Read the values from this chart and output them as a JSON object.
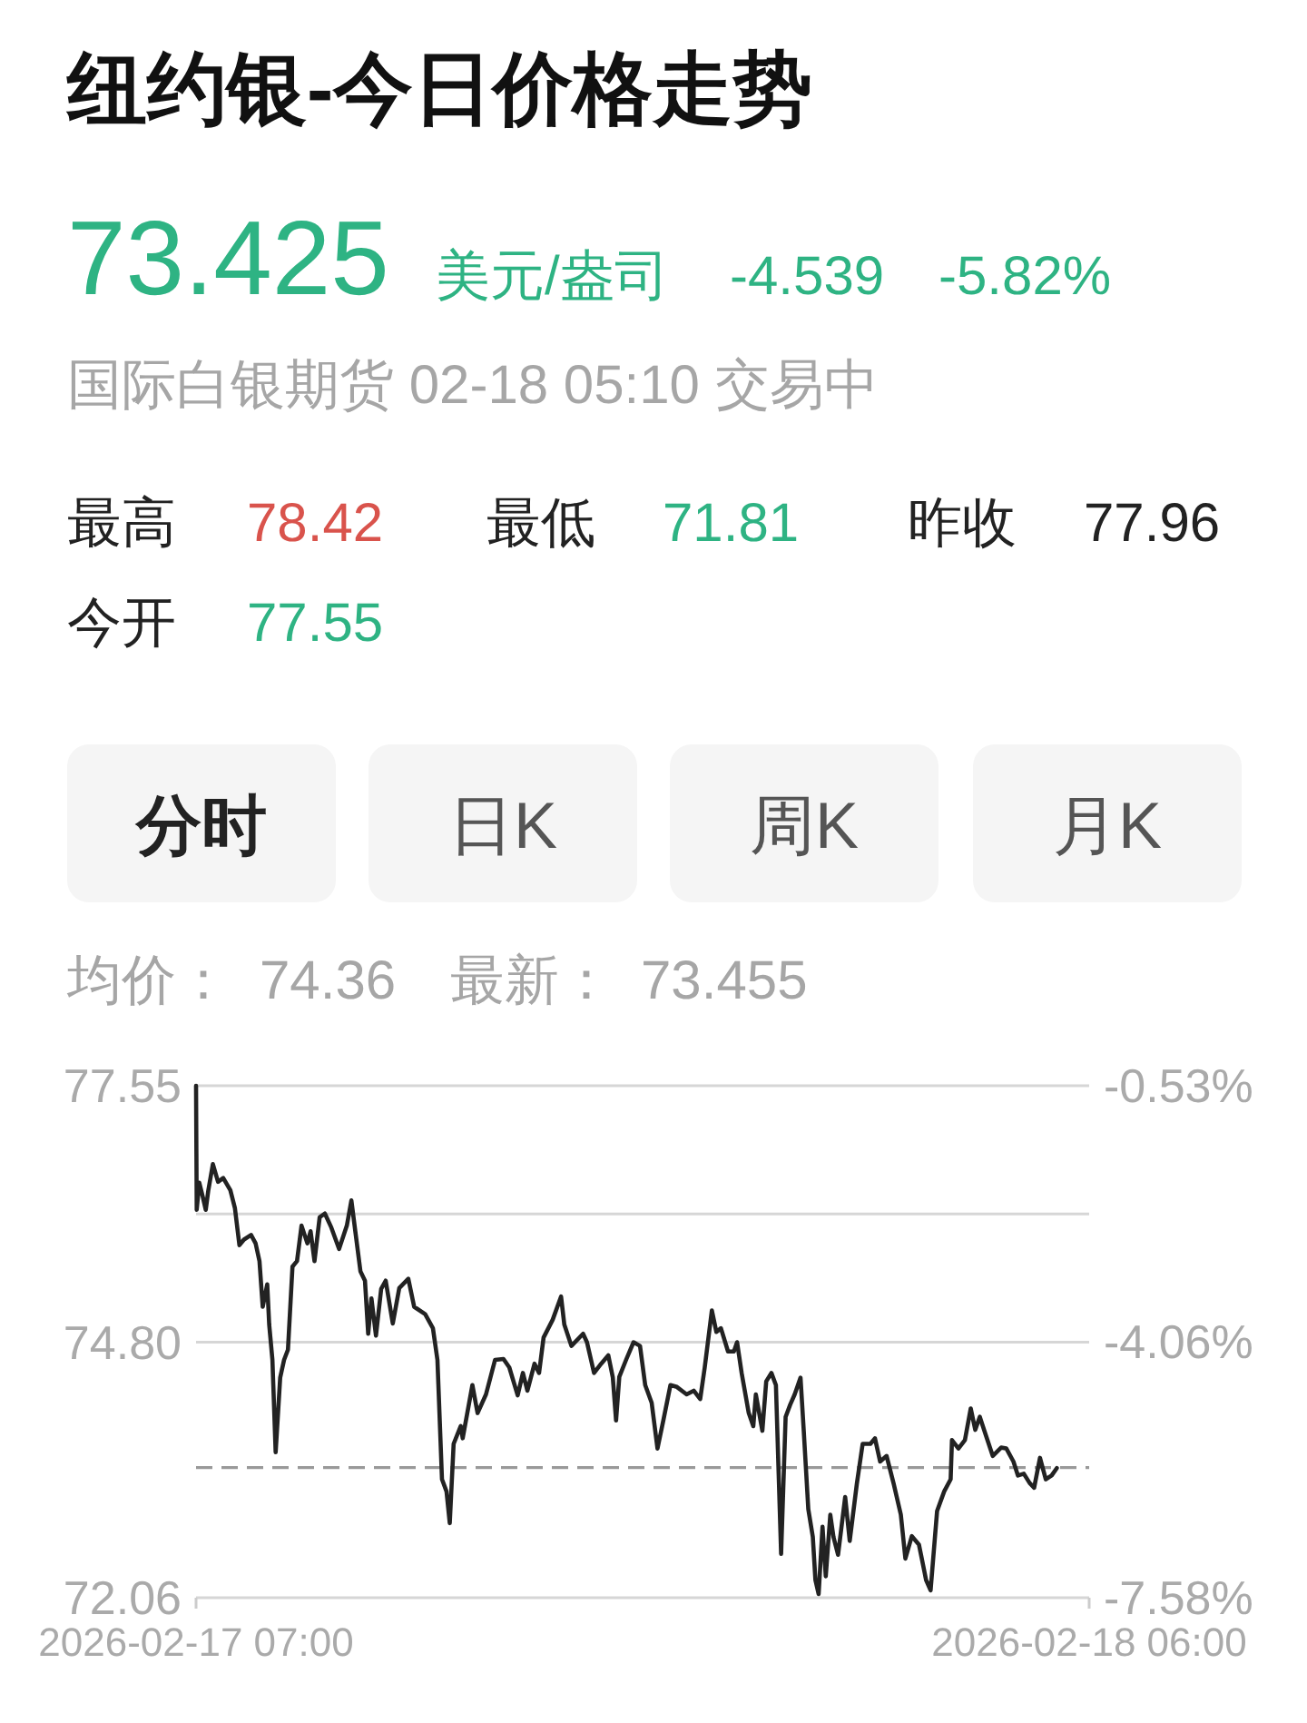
{
  "chart_data": {
    "type": "line",
    "title": "纽约银-今日价格走势",
    "annotations": [
      "73.425",
      "美元/盎司",
      "-4.539",
      "-5.82%",
      "国际白银期货 02-18 05:10 交易中",
      "最高",
      "78.42",
      "最低",
      "71.81",
      "昨收",
      "77.96",
      "今开",
      "77.55",
      "分时",
      "日K",
      "周K",
      "月K",
      "均价：",
      "74.36",
      "最新：",
      "73.455"
    ],
    "series": [
      {
        "color": "#222222",
        "x": [
          "2026-02-17T07:00",
          "2026-02-17T07:01",
          "2026-02-17T07:05",
          "2026-02-17T07:10",
          "2026-02-17T07:15",
          "2026-02-17T07:19",
          "2026-02-17T07:26",
          "2026-02-17T07:34",
          "2026-02-17T07:42",
          "2026-02-17T07:53",
          "2026-02-17T08:00",
          "2026-02-17T08:07",
          "2026-02-17T08:14",
          "2026-02-17T08:25",
          "2026-02-17T08:32",
          "2026-02-17T08:38",
          "2026-02-17T08:43",
          "2026-02-17T08:50",
          "2026-02-17T08:53",
          "2026-02-17T08:58",
          "2026-02-17T09:03",
          "2026-02-17T09:10",
          "2026-02-17T09:16",
          "2026-02-17T09:22",
          "2026-02-17T09:29",
          "2026-02-17T09:36",
          "2026-02-17T09:43",
          "2026-02-17T09:52",
          "2026-02-17T09:57",
          "2026-02-17T10:03",
          "2026-02-17T10:11",
          "2026-02-17T10:19",
          "2026-02-17T10:29",
          "2026-02-17T10:41",
          "2026-02-17T10:53",
          "2026-02-17T11:00",
          "2026-02-17T11:07",
          "2026-02-17T11:14",
          "2026-02-17T11:21",
          "2026-02-17T11:26",
          "2026-02-17T11:31",
          "2026-02-17T11:38",
          "2026-02-17T11:46",
          "2026-02-17T11:53",
          "2026-02-17T12:04",
          "2026-02-17T12:14",
          "2026-02-17T12:28",
          "2026-02-17T12:37",
          "2026-02-17T12:54",
          "2026-02-17T13:06",
          "2026-02-17T13:13",
          "2026-02-17T13:20",
          "2026-02-17T13:27",
          "2026-02-17T13:32",
          "2026-02-17T13:38",
          "2026-02-17T13:49",
          "2026-02-17T13:52",
          "2026-02-17T14:07",
          "2026-02-17T14:15",
          "2026-02-17T14:28",
          "2026-02-17T14:42",
          "2026-02-17T14:55",
          "2026-02-17T15:04",
          "2026-02-17T15:17",
          "2026-02-17T15:25",
          "2026-02-17T15:32",
          "2026-02-17T15:43",
          "2026-02-17T15:50",
          "2026-02-17T15:57",
          "2026-02-17T16:11",
          "2026-02-17T16:24",
          "2026-02-17T16:29",
          "2026-02-17T16:40",
          "2026-02-17T16:58",
          "2026-02-17T17:04",
          "2026-02-17T17:15",
          "2026-02-17T17:26",
          "2026-02-17T17:37",
          "2026-02-17T17:44",
          "2026-02-17T17:49",
          "2026-02-17T17:54",
          "2026-02-17T18:05",
          "2026-02-17T18:16",
          "2026-02-17T18:26",
          "2026-02-17T18:34",
          "2026-02-17T18:44",
          "2026-02-17T18:53",
          "2026-02-17T19:02",
          "2026-02-17T19:13",
          "2026-02-17T19:23",
          "2026-02-17T19:38",
          "2026-02-17T19:49",
          "2026-02-17T19:59",
          "2026-02-17T20:06",
          "2026-02-17T20:17",
          "2026-02-17T20:24",
          "2026-02-17T20:31",
          "2026-02-17T20:42",
          "2026-02-17T20:51",
          "2026-02-17T20:56",
          "2026-02-17T21:03",
          "2026-02-17T21:14",
          "2026-02-17T21:21",
          "2026-02-17T21:25",
          "2026-02-17T21:35",
          "2026-02-17T21:41",
          "2026-02-17T21:49",
          "2026-02-17T21:56",
          "2026-02-17T22:04",
          "2026-02-17T22:11",
          "2026-02-17T22:18",
          "2026-02-17T22:25",
          "2026-02-17T22:34",
          "2026-02-17T22:39",
          "2026-02-17T22:46",
          "2026-02-17T22:53",
          "2026-02-17T22:57",
          "2026-02-17T23:02",
          "2026-02-17T23:08",
          "2026-02-17T23:13",
          "2026-02-17T23:20",
          "2026-02-17T23:25",
          "2026-02-17T23:32",
          "2026-02-17T23:43",
          "2026-02-17T23:50",
          "2026-02-18T00:01",
          "2026-02-18T00:10",
          "2026-02-18T00:22",
          "2026-02-18T00:29",
          "2026-02-18T00:37",
          "2026-02-18T00:47",
          "2026-02-18T00:58",
          "2026-02-18T01:09",
          "2026-02-18T01:16",
          "2026-02-18T01:26",
          "2026-02-18T01:37",
          "2026-02-18T01:48",
          "2026-02-18T01:55",
          "2026-02-18T02:05",
          "2026-02-18T02:16",
          "2026-02-18T02:26",
          "2026-02-18T02:28",
          "2026-02-18T02:38",
          "2026-02-18T02:48",
          "2026-02-18T02:57",
          "2026-02-18T03:04",
          "2026-02-18T03:11",
          "2026-02-18T03:20",
          "2026-02-18T03:31",
          "2026-02-18T03:44",
          "2026-02-18T03:52",
          "2026-02-18T04:03",
          "2026-02-18T04:10",
          "2026-02-18T04:19",
          "2026-02-18T04:28",
          "2026-02-18T04:35",
          "2026-02-18T04:44",
          "2026-02-18T04:53",
          "2026-02-18T05:02",
          "2026-02-18T05:10"
        ],
        "values": [
          77.55,
          76.22,
          76.51,
          76.37,
          76.22,
          76.43,
          76.71,
          76.52,
          76.56,
          76.43,
          76.24,
          75.84,
          75.9,
          75.95,
          75.86,
          75.67,
          75.18,
          75.42,
          74.99,
          74.61,
          73.62,
          74.42,
          74.61,
          74.72,
          75.61,
          75.67,
          76.05,
          75.86,
          75.99,
          75.67,
          76.14,
          76.18,
          76.03,
          75.8,
          76.05,
          76.32,
          75.94,
          75.56,
          75.46,
          74.89,
          75.27,
          74.87,
          75.37,
          75.46,
          75,
          75.38,
          75.48,
          75.18,
          75.1,
          74.95,
          74.61,
          73.33,
          73.2,
          72.86,
          73.71,
          73.9,
          73.77,
          74.34,
          74.04,
          74.24,
          74.61,
          74.62,
          74.53,
          74.23,
          74.47,
          74.28,
          74.57,
          74.47,
          74.85,
          75.04,
          75.29,
          74.99,
          74.76,
          74.89,
          74.8,
          74.47,
          74.57,
          74.66,
          74.42,
          73.96,
          74.43,
          74.62,
          74.8,
          74.76,
          74.34,
          74.15,
          73.66,
          73.96,
          74.34,
          74.32,
          74.24,
          74.28,
          74.19,
          74.53,
          75.14,
          74.91,
          74.95,
          74.7,
          74.7,
          74.8,
          74.47,
          74.04,
          73.9,
          74.24,
          73.85,
          74.38,
          74.47,
          74.34,
          72.53,
          74,
          74.13,
          74.24,
          74.42,
          73.85,
          73.01,
          72.71,
          72.25,
          72.1,
          72.82,
          72.29,
          72.95,
          72.71,
          72.52,
          73.14,
          72.67,
          73.28,
          73.71,
          73.71,
          73.77,
          73.52,
          73.58,
          73.28,
          72.95,
          72.48,
          72.72,
          72.63,
          72.25,
          72.14,
          72.99,
          73.2,
          73.33,
          73.75,
          73.66,
          73.75,
          74.09,
          73.86,
          74,
          73.81,
          73.58,
          73.67,
          73.66,
          73.52,
          73.37,
          73.39,
          73.29,
          73.24,
          73.56,
          73.33,
          73.37,
          73.45
        ]
      }
    ],
    "xlim": [
      "2026-02-17T07:00",
      "2026-02-18T06:00"
    ],
    "xticks": [
      {
        "value": "2026-02-17T07:00",
        "label": "2026-02-17 07:00"
      },
      {
        "value": "2026-02-18T06:00",
        "label": "2026-02-18 06:00"
      }
    ],
    "ylim": [
      72.06,
      77.55
    ],
    "yticks": [
      77.55,
      {
        "value": 76.175,
        "label": null
      },
      {
        "value": 74.8,
        "label": "74.80"
      },
      72.06
    ],
    "y2lim": [
      -7.58,
      -0.53
    ],
    "y2ticks": [
      {
        "value": -0.53,
        "label": "-0.53%"
      },
      {
        "value": -4.06,
        "label": "-4.06%"
      },
      {
        "value": -7.58,
        "label": "-7.58%"
      }
    ],
    "grid": "y",
    "ref_lines": [
      {
        "axis": "y",
        "value": 73.455,
        "color": "#999999",
        "line_style": "dashed"
      }
    ]
  }
}
